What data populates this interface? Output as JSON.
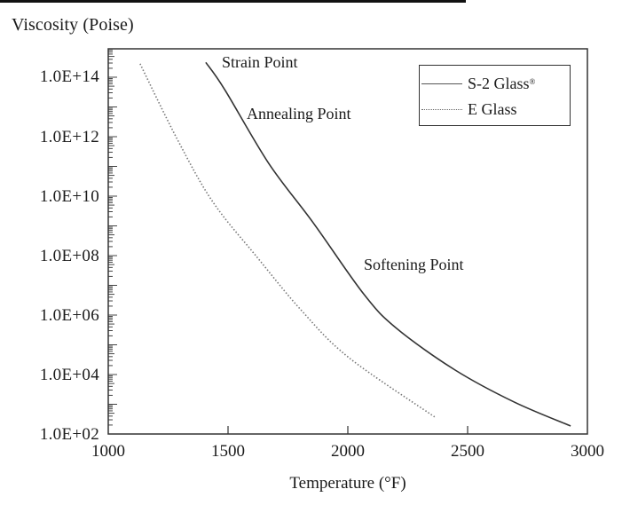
{
  "chart_data": {
    "type": "line",
    "title": "",
    "ylabel": "Viscosity (Poise)",
    "xlabel": "Temperature (°F)",
    "x_scale": "linear",
    "y_scale": "log",
    "xlim": [
      1000,
      3000
    ],
    "ylim": [
      100,
      1000000000000000.0
    ],
    "x_ticks": [
      "1000",
      "1500",
      "2000",
      "2500",
      "3000"
    ],
    "y_ticks": [
      "1.0E+14",
      "1.0E+12",
      "1.0E+10",
      "1.0E+08",
      "1.0E+06",
      "1.0E+04",
      "1.0E+02"
    ],
    "legend_position": "upper right",
    "grid": false,
    "series": [
      {
        "name": "S-2 Glass®",
        "style": "solid",
        "color": "#333333",
        "x": [
          1407,
          1485,
          1670,
          1856,
          2067,
          2204,
          2448,
          2696,
          2930
        ],
        "log10_y": [
          14.5,
          13.6,
          11.1,
          9.1,
          6.7,
          5.55,
          4.15,
          3.07,
          2.27
        ]
      },
      {
        "name": "E Glass",
        "style": "dotted",
        "color": "#777777",
        "x": [
          1133,
          1289,
          1437,
          1622,
          1807,
          2004,
          2363
        ],
        "log10_y": [
          14.45,
          11.9,
          9.8,
          7.94,
          6.15,
          4.57,
          2.57
        ]
      }
    ],
    "annotations": [
      {
        "text": "Strain Point",
        "x": 1480,
        "log10_y": 14.5
      },
      {
        "text": "Annealing Point",
        "x": 1580,
        "log10_y": 12.8
      },
      {
        "text": "Softening Point",
        "x": 2070,
        "log10_y": 7.6
      }
    ]
  },
  "labels": {
    "y_axis_title": "Viscosity (Poise)",
    "x_axis_title": "Temperature (°F)",
    "legend": {
      "s2_name": "S-2 Glass",
      "s2_mark": "®",
      "e_name": "E Glass"
    },
    "annotations": {
      "strain": "Strain Point",
      "annealing": "Annealing Point",
      "softening": "Softening Point"
    },
    "y_ticks": [
      "1.0E+14",
      "1.0E+12",
      "1.0E+10",
      "1.0E+08",
      "1.0E+06",
      "1.0E+04",
      "1.0E+02"
    ],
    "x_ticks": [
      "1000",
      "1500",
      "2000",
      "2500",
      "3000"
    ]
  }
}
